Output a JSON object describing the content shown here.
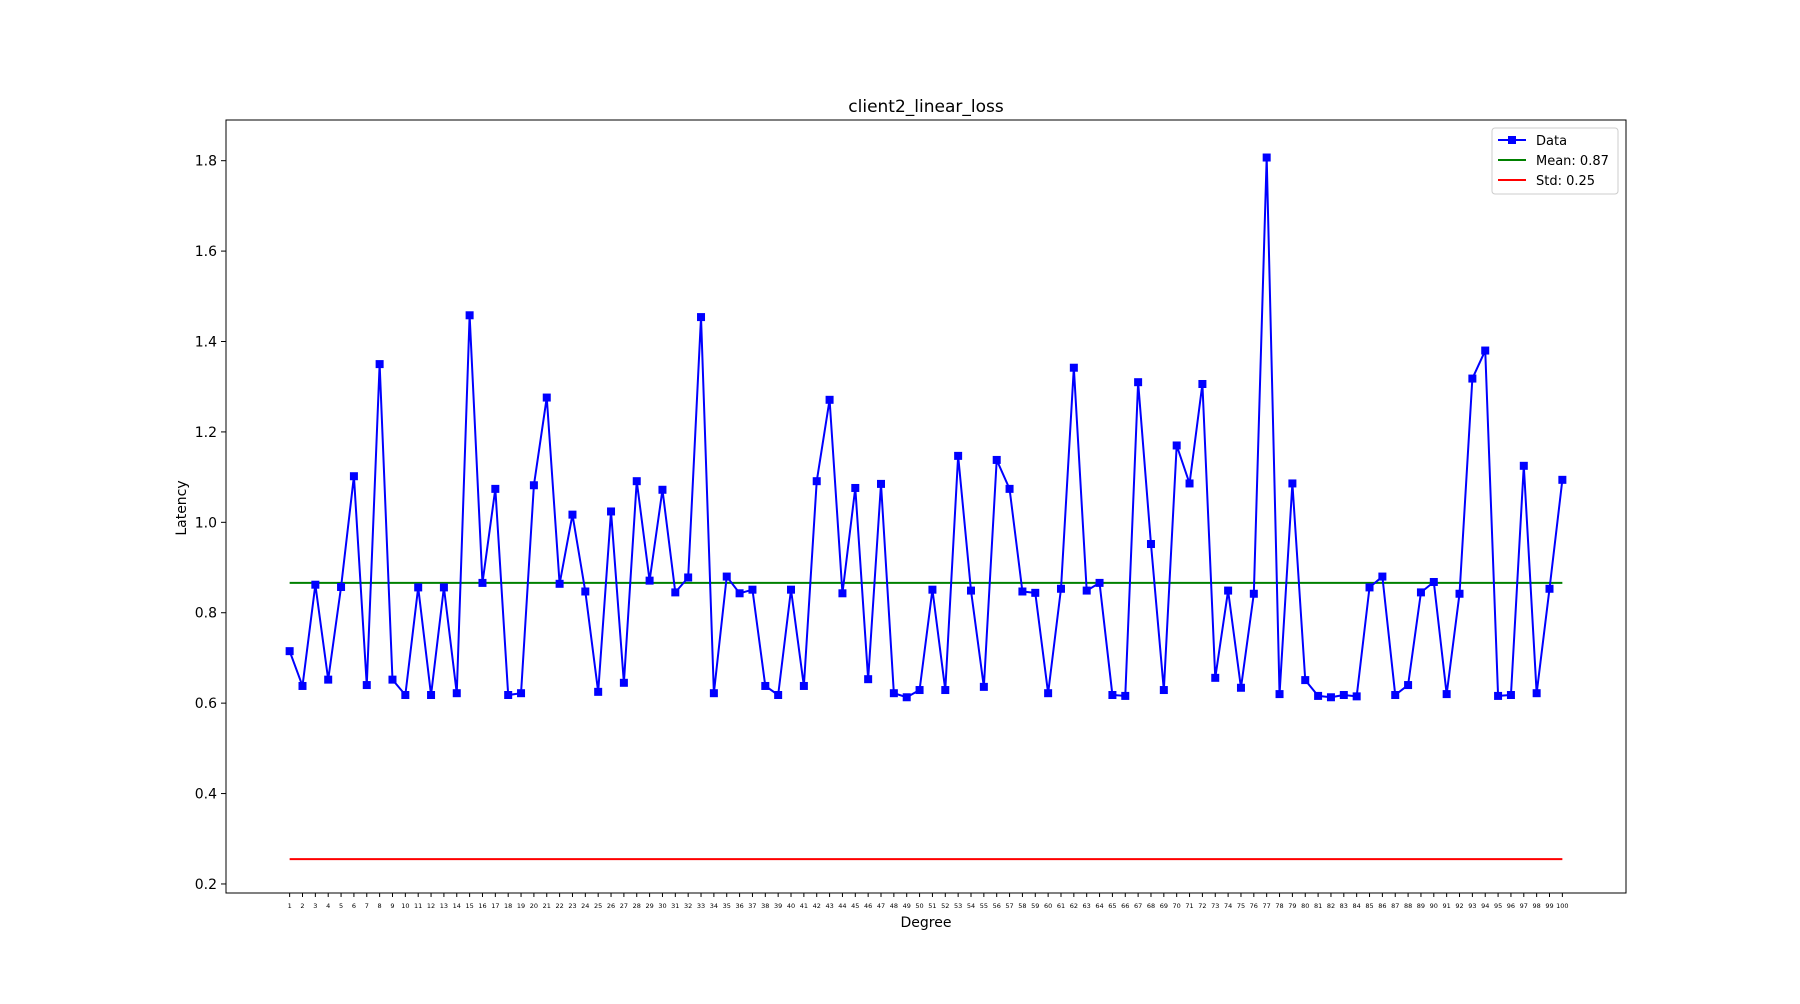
{
  "chart_data": {
    "type": "line",
    "title": "client2_linear_loss",
    "xlabel": "Degree",
    "ylabel": "Latency",
    "x": [
      1,
      2,
      3,
      4,
      5,
      6,
      7,
      8,
      9,
      10,
      11,
      12,
      13,
      14,
      15,
      16,
      17,
      18,
      19,
      20,
      21,
      22,
      23,
      24,
      25,
      26,
      27,
      28,
      29,
      30,
      31,
      32,
      33,
      34,
      35,
      36,
      37,
      38,
      39,
      40,
      41,
      42,
      43,
      44,
      45,
      46,
      47,
      48,
      49,
      50,
      51,
      52,
      53,
      54,
      55,
      56,
      57,
      58,
      59,
      60,
      61,
      62,
      63,
      64,
      65,
      66,
      67,
      68,
      69,
      70,
      71,
      72,
      73,
      74,
      75,
      76,
      77,
      78,
      79,
      80,
      81,
      82,
      83,
      84,
      85,
      86,
      87,
      88,
      89,
      90,
      91,
      92,
      93,
      94,
      95,
      96,
      97,
      98,
      99,
      100
    ],
    "ylim": [
      0.18,
      1.89
    ],
    "yticks": [
      0.2,
      0.4,
      0.6,
      0.8,
      1.0,
      1.2,
      1.4,
      1.6,
      1.8
    ],
    "ytick_labels": [
      "0.2",
      "0.4",
      "0.6",
      "0.8",
      "1.0",
      "1.2",
      "1.4",
      "1.6",
      "1.8"
    ],
    "grid": false,
    "legend_position": "top-right",
    "series": [
      {
        "name": "Data",
        "color": "#0000ff",
        "marker": "square",
        "values": [
          0.715,
          0.638,
          0.862,
          0.652,
          0.857,
          1.102,
          0.64,
          1.35,
          0.652,
          0.618,
          0.856,
          0.618,
          0.856,
          0.622,
          1.458,
          0.866,
          1.074,
          0.618,
          0.622,
          1.082,
          1.276,
          0.864,
          1.017,
          0.847,
          0.625,
          1.024,
          0.645,
          1.091,
          0.871,
          1.072,
          0.845,
          0.878,
          1.454,
          0.622,
          0.88,
          0.843,
          0.851,
          0.638,
          0.618,
          0.851,
          0.638,
          1.091,
          1.271,
          0.843,
          1.076,
          0.653,
          1.085,
          0.622,
          0.613,
          0.629,
          0.851,
          0.629,
          1.147,
          0.849,
          0.636,
          1.138,
          1.074,
          0.847,
          0.844,
          0.622,
          0.853,
          1.342,
          0.849,
          0.866,
          0.618,
          0.616,
          1.31,
          0.952,
          0.629,
          1.17,
          1.086,
          1.306,
          0.656,
          0.849,
          0.634,
          0.842,
          1.807,
          0.62,
          1.086,
          0.651,
          0.616,
          0.613,
          0.618,
          0.615,
          0.856,
          0.88,
          0.618,
          0.64,
          0.845,
          0.868,
          0.62,
          0.842,
          1.318,
          1.38,
          0.616,
          0.618,
          1.125,
          0.622,
          0.853,
          1.094
        ]
      }
    ],
    "reference_lines": [
      {
        "name": "Mean: 0.87",
        "value": 0.866,
        "color": "#008000"
      },
      {
        "name": "Std: 0.25",
        "value": 0.255,
        "color": "#ff0000"
      }
    ]
  }
}
